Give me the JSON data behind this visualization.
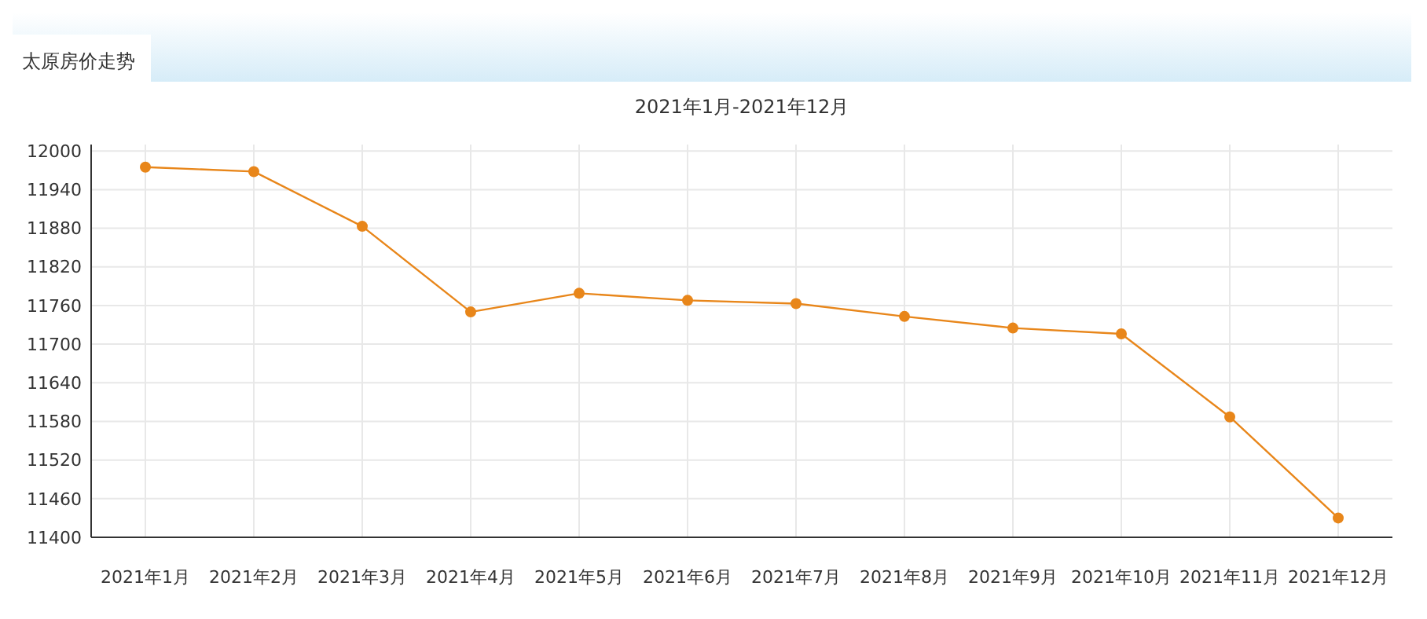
{
  "chart_data": {
    "type": "line",
    "title": "太原房价走势",
    "subtitle": "2021年1月-2021年12月",
    "categories": [
      "2021年1月",
      "2021年2月",
      "2021年3月",
      "2021年4月",
      "2021年5月",
      "2021年6月",
      "2021年7月",
      "2021年8月",
      "2021年9月",
      "2021年10月",
      "2021年11月",
      "2021年12月"
    ],
    "series": [
      {
        "color": "#e8861a",
        "values": [
          11975,
          11968,
          11883,
          11750,
          11779,
          11768,
          11763,
          11743,
          11725,
          11716,
          11587,
          11430
        ]
      }
    ],
    "ylim": [
      11400,
      12010
    ],
    "yticks": [
      11400,
      11460,
      11520,
      11580,
      11640,
      11700,
      11760,
      11820,
      11880,
      11940,
      12000
    ],
    "grid": true,
    "marker": "circle",
    "line_style": "solid"
  }
}
